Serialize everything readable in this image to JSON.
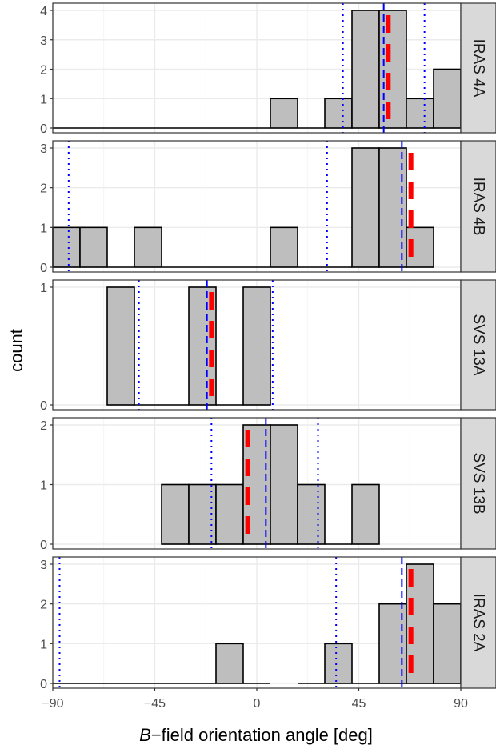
{
  "chart_data": {
    "type": "histogram",
    "xlabel_prefix": "B",
    "xlabel_rest": "−field orientation angle [deg]",
    "ylabel": "count",
    "xlim": [
      -90,
      90
    ],
    "x_ticks": [
      -90,
      -45,
      0,
      45,
      90
    ],
    "x_tick_labels": [
      "−90",
      "−45",
      "0",
      "45",
      "90"
    ],
    "bin_width": 12,
    "grid": true,
    "colors": {
      "bar_fill": "#bebebe",
      "bar_stroke": "#000000",
      "mean_line": "#0000ff",
      "sd_line": "#0000ff",
      "ref_line": "#ff0000",
      "strip_fill": "#d9d9d9",
      "grid": "#ebebeb"
    },
    "panels": [
      {
        "label": "IRAS 4A",
        "ylim": [
          0,
          4
        ],
        "y_ticks": [
          0,
          1,
          2,
          3,
          4
        ],
        "bins": [
          [
            -90,
            0
          ],
          [
            -78,
            0
          ],
          [
            -66,
            0
          ],
          [
            -54,
            0
          ],
          [
            -42,
            0
          ],
          [
            -30,
            0
          ],
          [
            -18,
            0
          ],
          [
            -6,
            0
          ],
          [
            6,
            1
          ],
          [
            18,
            0
          ],
          [
            30,
            1
          ],
          [
            42,
            4
          ],
          [
            54,
            4
          ],
          [
            66,
            1
          ],
          [
            78,
            2
          ]
        ],
        "mean": 56,
        "sd_lines": [
          38,
          74
        ],
        "ref": 58
      },
      {
        "label": "IRAS 4B",
        "ylim": [
          0,
          3
        ],
        "y_ticks": [
          0,
          1,
          2,
          3
        ],
        "bins": [
          [
            -90,
            1
          ],
          [
            -78,
            1
          ],
          [
            -66,
            0
          ],
          [
            -54,
            1
          ],
          [
            -42,
            0
          ],
          [
            -30,
            0
          ],
          [
            -18,
            0
          ],
          [
            -6,
            0
          ],
          [
            6,
            1
          ],
          [
            18,
            0
          ],
          [
            30,
            0
          ],
          [
            42,
            3
          ],
          [
            54,
            3
          ],
          [
            66,
            1
          ]
        ],
        "mean": 64,
        "sd_lines": [
          -83,
          31
        ],
        "ref": 68
      },
      {
        "label": "SVS 13A",
        "ylim": [
          0,
          1
        ],
        "y_ticks": [
          0,
          1
        ],
        "bins": [
          [
            -66,
            1
          ],
          [
            -54,
            0
          ],
          [
            -42,
            0
          ],
          [
            -30,
            1
          ],
          [
            -18,
            0
          ],
          [
            -6,
            1
          ]
        ],
        "mean": -22,
        "sd_lines": [
          -52,
          7
        ],
        "ref": -20
      },
      {
        "label": "SVS 13B",
        "ylim": [
          0,
          2
        ],
        "y_ticks": [
          0,
          1,
          2
        ],
        "bins": [
          [
            -42,
            1
          ],
          [
            -30,
            1
          ],
          [
            -18,
            1
          ],
          [
            -6,
            2
          ],
          [
            6,
            2
          ],
          [
            18,
            1
          ],
          [
            30,
            0
          ],
          [
            42,
            1
          ]
        ],
        "mean": 4,
        "sd_lines": [
          -20,
          27
        ],
        "ref": -4
      },
      {
        "label": "IRAS 2A",
        "ylim": [
          0,
          3
        ],
        "y_ticks": [
          0,
          1,
          2,
          3
        ],
        "bins": [
          [
            -90,
            0
          ],
          [
            -78,
            0
          ],
          [
            -66,
            0
          ],
          [
            -54,
            0
          ],
          [
            -42,
            0
          ],
          [
            -30,
            0
          ],
          [
            -18,
            1
          ],
          [
            -6,
            0
          ],
          [
            18,
            0
          ],
          [
            30,
            1
          ],
          [
            42,
            0
          ],
          [
            54,
            2
          ],
          [
            66,
            3
          ],
          [
            78,
            2
          ]
        ],
        "mean": 64,
        "sd_lines": [
          -87,
          35
        ],
        "ref": 68
      }
    ]
  }
}
